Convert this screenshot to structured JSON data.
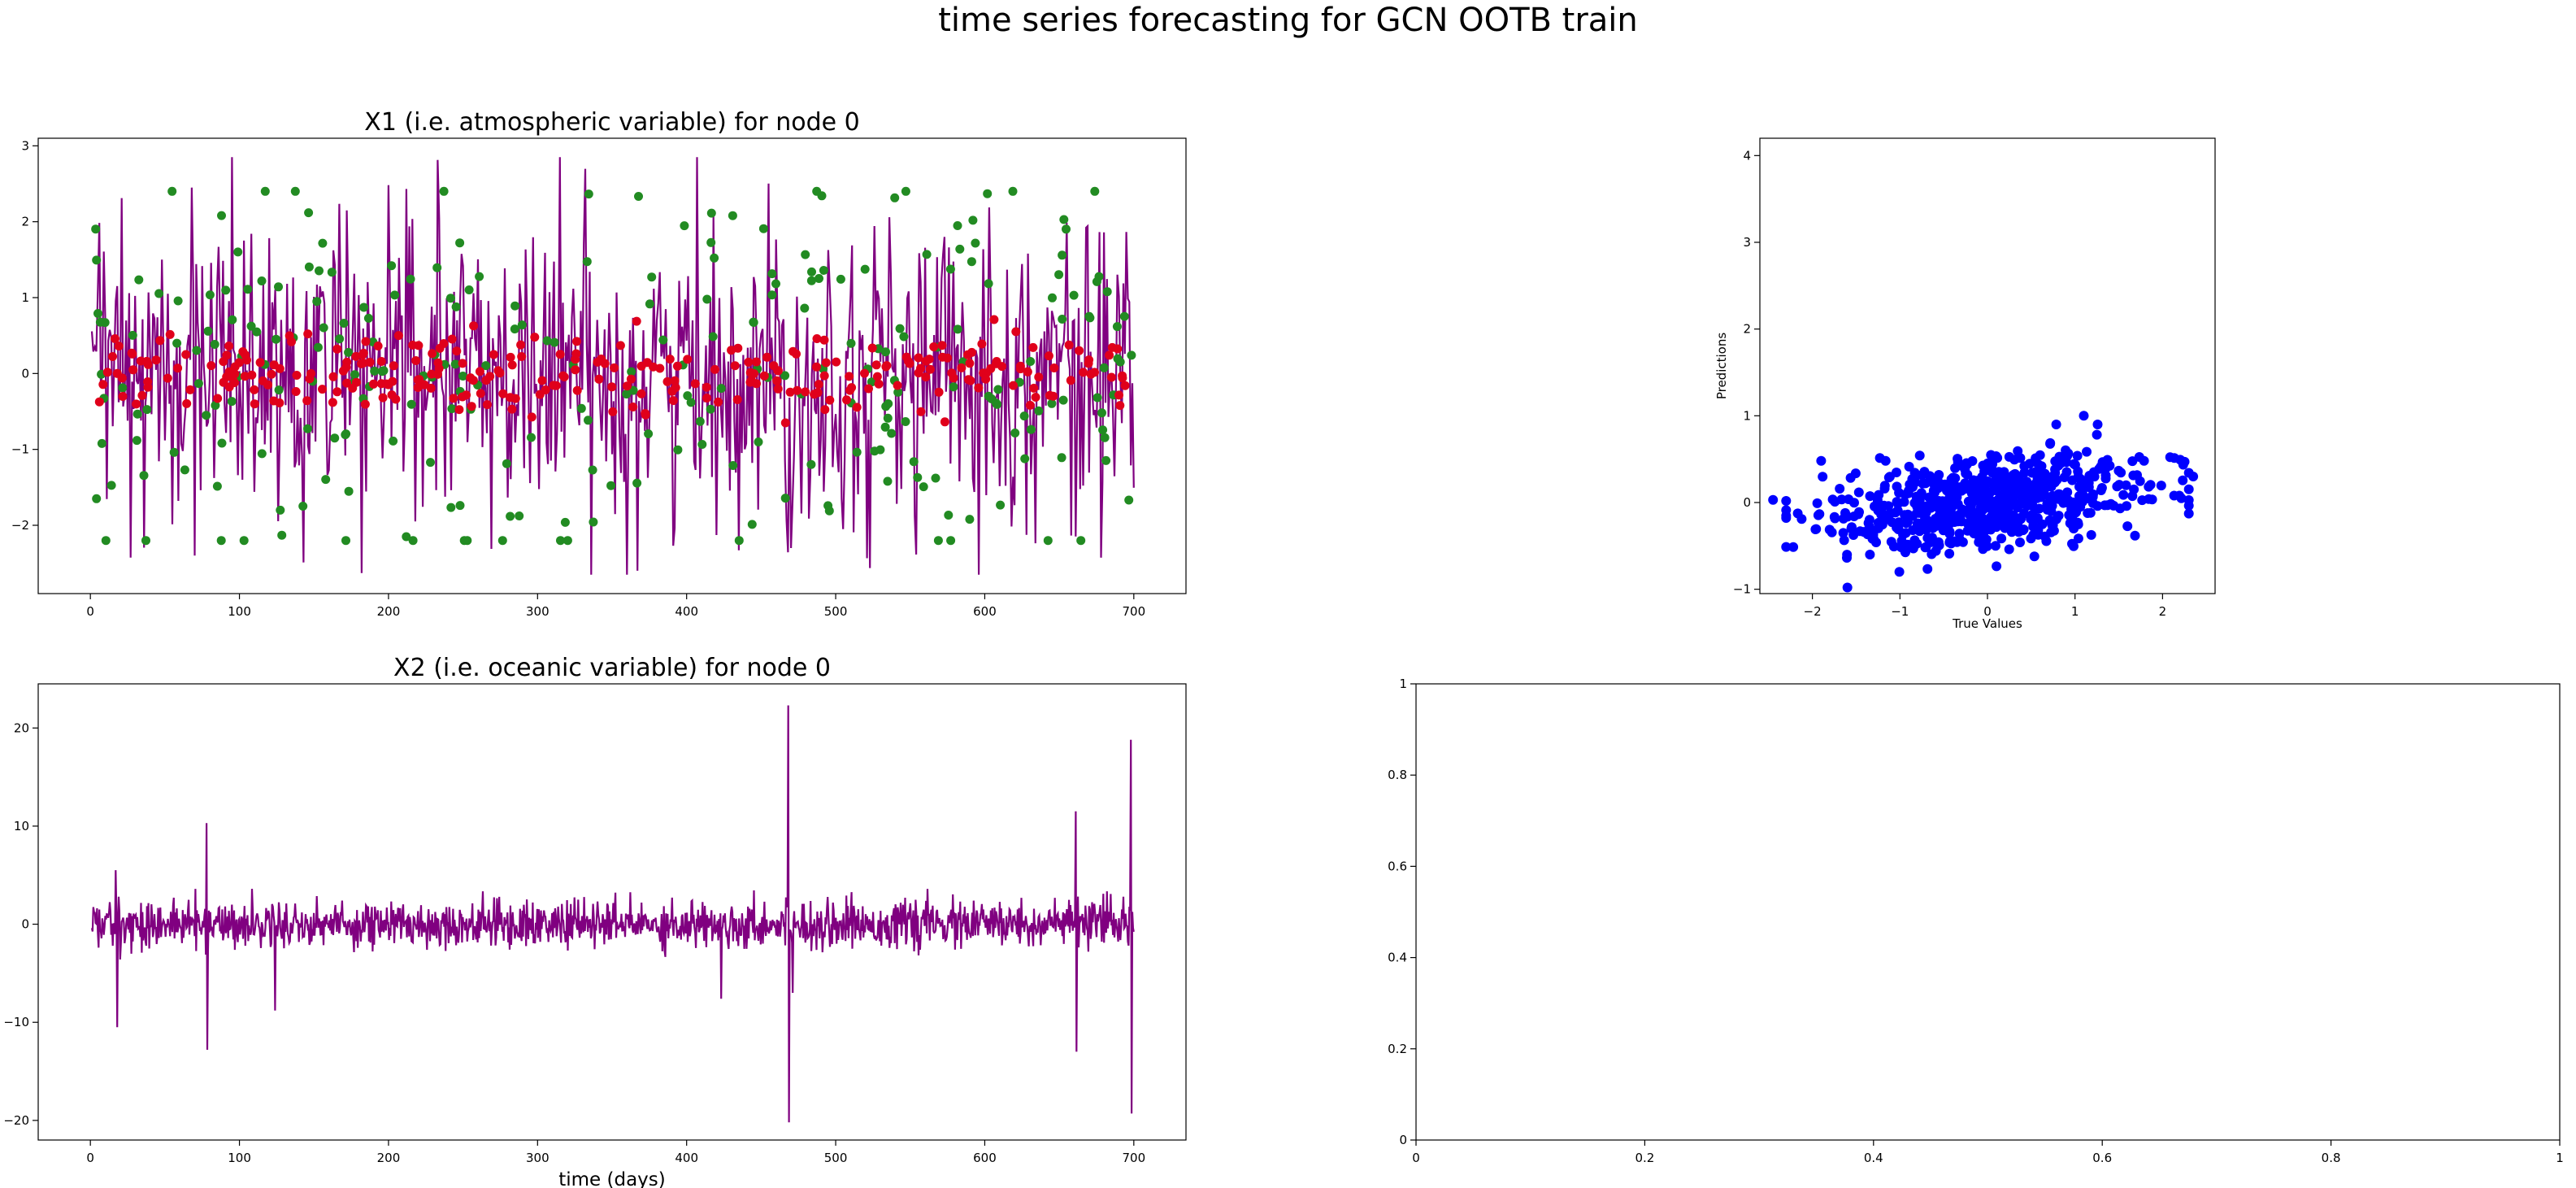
{
  "figure": {
    "suptitle": "time series forecasting for GCN OOTB train"
  },
  "colors": {
    "line": "#800080",
    "observed": "#228B22",
    "predicted": "#E0001B",
    "scatter": "#0000FF"
  },
  "chart_data": [
    {
      "type": "line",
      "title": "X1 (i.e. atmospheric variable) for node 0",
      "xlabel": "",
      "ylabel": "",
      "xlim": [
        -35,
        735
      ],
      "ylim": [
        -2.9,
        3.1
      ],
      "xticks": [
        0,
        100,
        200,
        300,
        400,
        500,
        600,
        700
      ],
      "yticks": [
        -2,
        -1,
        0,
        1,
        2,
        3
      ],
      "series": [
        {
          "kind": "line",
          "x_range": [
            1,
            700
          ],
          "n_points": 700,
          "noise": "gaussian",
          "std": 1.0,
          "min": -2.65,
          "max": 2.85,
          "peaks": [
            {
              "x": 95,
              "y": 2.85
            },
            {
              "x": 68,
              "y": 2.45
            },
            {
              "x": 360,
              "y": -2.65
            },
            {
              "x": 70,
              "y": -2.4
            },
            {
              "x": 470,
              "y": -2.3
            }
          ]
        },
        {
          "kind": "observed-markers",
          "noise": "gaussian",
          "std": 1.25
        },
        {
          "kind": "predicted-markers",
          "noise": "gaussian",
          "std": 0.25
        }
      ],
      "grid": false
    },
    {
      "type": "scatter",
      "title": "",
      "xlabel": "True Values",
      "ylabel": "Predictions",
      "xlim": [
        -2.6,
        2.6
      ],
      "ylim": [
        -1.05,
        4.2
      ],
      "xticks": [
        -2,
        -1,
        0,
        1,
        2
      ],
      "yticks": [
        -1,
        0,
        1,
        2,
        3,
        4
      ],
      "n_points": 700,
      "x_std": 0.9,
      "y_std": 0.28,
      "correlation": 0.3,
      "extremes": [
        {
          "x": -2.45,
          "y": 0.03
        },
        {
          "x": 2.35,
          "y": 0.3
        },
        {
          "x": -1.6,
          "y": -0.98
        },
        {
          "x": 1.1,
          "y": 1.0
        },
        {
          "x": -1.9,
          "y": 0.48
        }
      ],
      "grid": false
    },
    {
      "type": "line",
      "title": "X2 (i.e. oceanic variable) for node 0",
      "xlabel": "time (days)",
      "ylabel": "",
      "xlim": [
        -35,
        735
      ],
      "ylim": [
        -22,
        24.5
      ],
      "xticks": [
        0,
        100,
        200,
        300,
        400,
        500,
        600,
        700
      ],
      "yticks": [
        -20,
        -10,
        0,
        10,
        20
      ],
      "series": [
        {
          "kind": "line",
          "x_range": [
            1,
            700
          ],
          "n_points": 1400,
          "noise": "gaussian",
          "std": 1.2,
          "spikes": [
            {
              "x": 17,
              "y": 5.5
            },
            {
              "x": 18,
              "y": -10.5
            },
            {
              "x": 78,
              "y": 10.3
            },
            {
              "x": 78.5,
              "y": -12.8
            },
            {
              "x": 124,
              "y": -8.8
            },
            {
              "x": 423,
              "y": -7.6
            },
            {
              "x": 468,
              "y": 22.3
            },
            {
              "x": 468.5,
              "y": -20.2
            },
            {
              "x": 471,
              "y": -7
            },
            {
              "x": 661,
              "y": 11.5
            },
            {
              "x": 661.5,
              "y": -13
            },
            {
              "x": 698,
              "y": 18.8
            },
            {
              "x": 698.5,
              "y": -19.3
            }
          ]
        }
      ],
      "grid": false
    },
    {
      "type": "line",
      "title": "",
      "xlabel": "",
      "ylabel": "",
      "xlim": [
        0,
        1
      ],
      "ylim": [
        0,
        1
      ],
      "xticks": [
        0.0,
        0.2,
        0.4,
        0.6,
        0.8,
        1.0
      ],
      "yticks": [
        0.0,
        0.2,
        0.4,
        0.6,
        0.8,
        1.0
      ],
      "series": [],
      "grid": false
    }
  ]
}
